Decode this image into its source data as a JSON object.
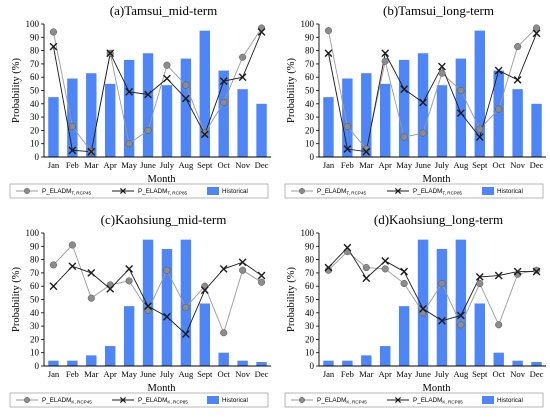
{
  "chart_data": [
    {
      "type": "bar",
      "title": "(a)Tamsui_mid-term",
      "xlabel": "Month",
      "ylabel": "Probability (%)",
      "ylim": [
        0,
        100
      ],
      "yticks": [
        0,
        10,
        20,
        30,
        40,
        50,
        60,
        70,
        80,
        90,
        100
      ],
      "grid": false,
      "categories": [
        "Jan",
        "Feb",
        "Mar",
        "Apr",
        "May",
        "June",
        "July",
        "Aug",
        "Sept",
        "Oct",
        "Nov",
        "Dec"
      ],
      "series": [
        {
          "name": "Historical",
          "type": "bar",
          "values": [
            45,
            59,
            63,
            55,
            73,
            78,
            54,
            74,
            95,
            65,
            51,
            40
          ]
        },
        {
          "name": "P_ELADM",
          "subscript": "T, RCP45",
          "type": "line-circle",
          "values": [
            94,
            23,
            4,
            78,
            10,
            20,
            69,
            54,
            18,
            41,
            75,
            97
          ]
        },
        {
          "name": "P_ELADM",
          "subscript": "T, RCP85",
          "type": "line-x",
          "values": [
            83,
            5,
            4,
            78,
            49,
            47,
            59,
            44,
            17,
            57,
            60,
            94
          ]
        }
      ]
    },
    {
      "type": "bar",
      "title": "(b)Tamsui_long-term",
      "xlabel": "Month",
      "ylabel": "Probability (%)",
      "ylim": [
        0,
        100
      ],
      "yticks": [
        0,
        10,
        20,
        30,
        40,
        50,
        60,
        70,
        80,
        90,
        100
      ],
      "grid": false,
      "categories": [
        "Jan",
        "Feb",
        "Mar",
        "Apr",
        "May",
        "June",
        "July",
        "Aug",
        "Sept",
        "Oct",
        "Nov",
        "Dec"
      ],
      "series": [
        {
          "name": "Historical",
          "type": "bar",
          "values": [
            45,
            59,
            63,
            55,
            73,
            78,
            54,
            74,
            95,
            65,
            51,
            40
          ]
        },
        {
          "name": "P_ELADM",
          "subscript": "T, RCP45",
          "type": "line-circle",
          "values": [
            95,
            23,
            6,
            72,
            15,
            18,
            63,
            50,
            21,
            36,
            83,
            97
          ]
        },
        {
          "name": "P_ELADM",
          "subscript": "T, RCP85",
          "type": "line-x",
          "values": [
            78,
            6,
            4,
            78,
            51,
            41,
            68,
            33,
            15,
            65,
            58,
            93
          ]
        }
      ]
    },
    {
      "type": "bar",
      "title": "(c)Kaohsiung_mid-term",
      "xlabel": "Month",
      "ylabel": "Probability (%)",
      "ylim": [
        0,
        100
      ],
      "yticks": [
        0,
        10,
        20,
        30,
        40,
        50,
        60,
        70,
        80,
        90,
        100
      ],
      "grid": false,
      "categories": [
        "Jan",
        "Feb",
        "Mar",
        "Apr",
        "May",
        "June",
        "July",
        "Aug",
        "Sept",
        "Oct",
        "Nov",
        "Dec"
      ],
      "series": [
        {
          "name": "Historical",
          "type": "bar",
          "values": [
            4,
            4,
            8,
            15,
            45,
            95,
            88,
            95,
            47,
            10,
            4,
            3
          ]
        },
        {
          "name": "P_ELADM",
          "subscript": "K, RCP45",
          "type": "line-circle",
          "values": [
            76,
            91,
            51,
            61,
            64,
            42,
            72,
            44,
            60,
            25,
            72,
            63
          ]
        },
        {
          "name": "P_ELADM",
          "subscript": "K, RCP85",
          "type": "line-x",
          "values": [
            60,
            75,
            70,
            58,
            73,
            45,
            37,
            24,
            57,
            73,
            78,
            68
          ]
        }
      ]
    },
    {
      "type": "bar",
      "title": "(d)Kaohsiung_long-term",
      "xlabel": "Month",
      "ylabel": "Probability (%)",
      "ylim": [
        0,
        100
      ],
      "yticks": [
        0,
        10,
        20,
        30,
        40,
        50,
        60,
        70,
        80,
        90,
        100
      ],
      "grid": false,
      "categories": [
        "Jan",
        "Feb",
        "Mar",
        "Apr",
        "May",
        "June",
        "July",
        "Aug",
        "Sept",
        "Oct",
        "Nov",
        "Dec"
      ],
      "series": [
        {
          "name": "Historical",
          "type": "bar",
          "values": [
            4,
            4,
            8,
            15,
            45,
            95,
            88,
            95,
            47,
            10,
            4,
            3
          ]
        },
        {
          "name": "P_ELADM",
          "subscript": "K, RCP45",
          "type": "line-circle",
          "values": [
            72,
            86,
            74,
            73,
            62,
            40,
            62,
            31,
            62,
            31,
            69,
            72
          ]
        },
        {
          "name": "P_ELADM",
          "subscript": "K, RCP85",
          "type": "line-x",
          "values": [
            74,
            89,
            66,
            79,
            71,
            43,
            34,
            38,
            67,
            68,
            71,
            71
          ]
        }
      ]
    }
  ],
  "colors": {
    "bar": "#4f86f7",
    "circle_fill": "#8c8c8c",
    "circle_line": "#9a9a9a",
    "x_line": "#1a1a1a"
  }
}
